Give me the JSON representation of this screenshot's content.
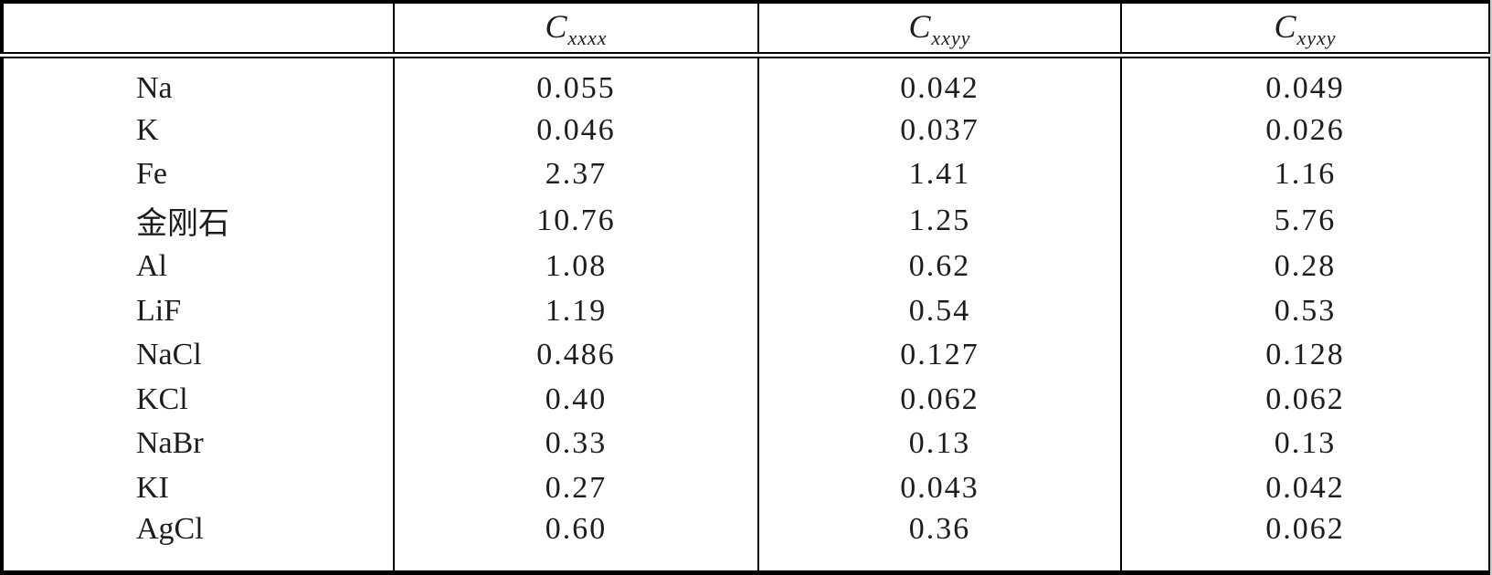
{
  "table": {
    "columns": [
      {
        "label": ""
      },
      {
        "base": "C",
        "sub": "xxxx"
      },
      {
        "base": "C",
        "sub": "xxyy"
      },
      {
        "base": "C",
        "sub": "xyxy"
      }
    ],
    "rows": [
      {
        "material": "Na",
        "values": [
          "0.055",
          "0.042",
          "0.049"
        ]
      },
      {
        "material": "K",
        "values": [
          "0.046",
          "0.037",
          "0.026"
        ]
      },
      {
        "material": "Fe",
        "values": [
          "2.37",
          "1.41",
          "1.16"
        ]
      },
      {
        "material": "金刚石",
        "values": [
          "10.76",
          "1.25",
          "5.76"
        ]
      },
      {
        "material": "Al",
        "values": [
          "1.08",
          "0.62",
          "0.28"
        ]
      },
      {
        "material": "LiF",
        "values": [
          "1.19",
          "0.54",
          "0.53"
        ]
      },
      {
        "material": "NaCl",
        "values": [
          "0.486",
          "0.127",
          "0.128"
        ]
      },
      {
        "material": "KCl",
        "values": [
          "0.40",
          "0.062",
          "0.062"
        ]
      },
      {
        "material": "NaBr",
        "values": [
          "0.33",
          "0.13",
          "0.13"
        ]
      },
      {
        "material": "KI",
        "values": [
          "0.27",
          "0.043",
          "0.042"
        ]
      },
      {
        "material": "AgCl",
        "values": [
          "0.60",
          "0.36",
          "0.062"
        ]
      }
    ],
    "colors": {
      "border": "#000000",
      "text": "#1d1d1d",
      "background": "#ffffff"
    }
  }
}
